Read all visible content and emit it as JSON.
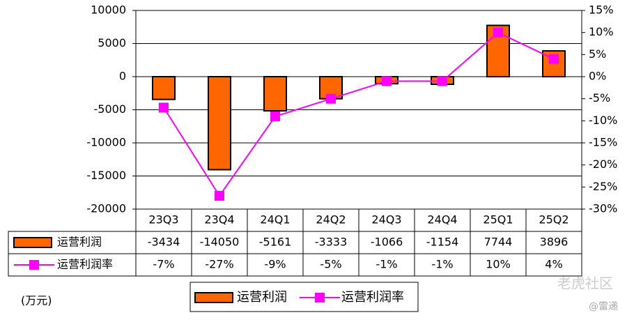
{
  "chart_data": {
    "type": "bar-line",
    "categories": [
      "23Q3",
      "23Q4",
      "24Q1",
      "24Q2",
      "24Q3",
      "24Q4",
      "25Q1",
      "25Q2"
    ],
    "series": [
      {
        "name": "运营利润",
        "type": "bar",
        "color": "#ff6600",
        "values": [
          -3434,
          -14050,
          -5161,
          -3333,
          -1066,
          -1154,
          7744,
          3896
        ]
      },
      {
        "name": "运营利润率",
        "type": "line",
        "axis": "y2",
        "color": "#ff00ff",
        "values": [
          -7,
          -27,
          -9,
          -5,
          -1,
          -1,
          10,
          4
        ],
        "value_labels": [
          "-7%",
          "-27%",
          "-9%",
          "-5%",
          "-1%",
          "-1%",
          "10%",
          "4%"
        ]
      }
    ],
    "ylim": [
      -20000,
      10000
    ],
    "yticks": [
      -20000,
      -15000,
      -10000,
      -5000,
      0,
      5000,
      10000
    ],
    "y2lim": [
      -30,
      15
    ],
    "y2ticks": [
      {
        "value": -30,
        "label": "-30%"
      },
      {
        "value": -25,
        "label": "-25%"
      },
      {
        "value": -20,
        "label": "-20%"
      },
      {
        "value": -15,
        "label": "-15%"
      },
      {
        "value": -10,
        "label": "-10%"
      },
      {
        "value": -5,
        "label": "-5%"
      },
      {
        "value": 0,
        "label": "0%"
      },
      {
        "value": 5,
        "label": "5%"
      },
      {
        "value": 10,
        "label": "10%"
      },
      {
        "value": 15,
        "label": "15%"
      }
    ],
    "grid": true,
    "unit_note": "(万元)",
    "watermark": "老虎社区",
    "credit": "@雷递"
  }
}
